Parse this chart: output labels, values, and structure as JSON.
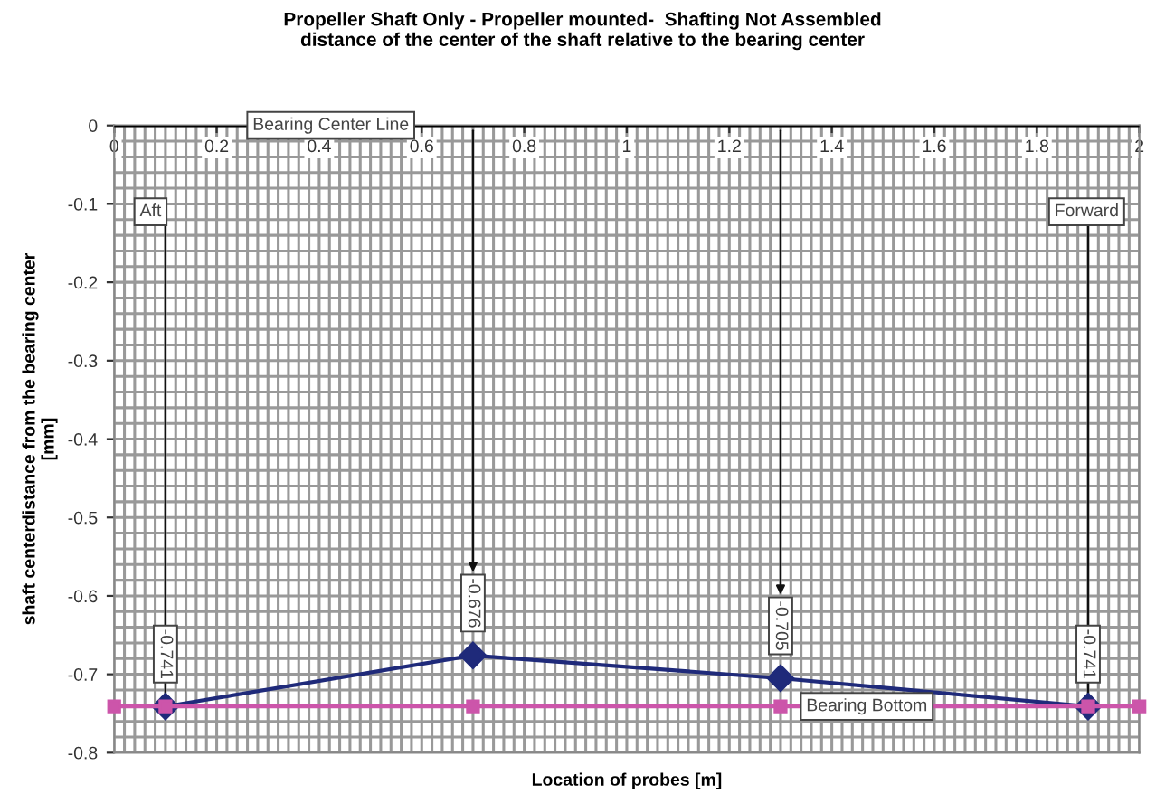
{
  "chart_data": {
    "type": "line",
    "title": "Propeller Shaft Only - Propeller mounted-  Shafting Not Assembled\ndistance of the center of the shaft relative to the bearing center",
    "xlabel": "Location of probes [m]",
    "ylabel": "shaft centerdistance from the bearing center\n[mm]",
    "xlim": [
      0,
      2
    ],
    "xticks": [
      0,
      0.2,
      0.4,
      0.6,
      0.8,
      1,
      1.2,
      1.4,
      1.6,
      1.8,
      2
    ],
    "ylim": [
      -0.8,
      0
    ],
    "yticks": [
      0,
      -0.1,
      -0.2,
      -0.3,
      -0.4,
      -0.5,
      -0.6,
      -0.7,
      -0.8
    ],
    "grid": true,
    "series": [
      {
        "name": "Bearing Bottom",
        "color": "#cc55aa",
        "marker": "square",
        "x": [
          0,
          0.1,
          0.7,
          1.3,
          1.9,
          2.0
        ],
        "values": [
          -0.741,
          -0.741,
          -0.741,
          -0.741,
          -0.741,
          -0.741
        ]
      },
      {
        "color": "#1f2a7a",
        "marker": "diamond",
        "x": [
          0.1,
          0.7,
          1.3,
          1.9
        ],
        "values": [
          -0.741,
          -0.676,
          -0.705,
          -0.741
        ],
        "data_labels": true
      }
    ],
    "ref_lines": [
      {
        "axis": "y",
        "value": 0,
        "label": "Bearing Center Line",
        "color": "#000000"
      }
    ],
    "annotations": [
      {
        "text": "Aft",
        "x": 0.1,
        "y": -0.741
      },
      {
        "text": "Forward",
        "x": 1.9,
        "y": -0.741
      }
    ]
  }
}
